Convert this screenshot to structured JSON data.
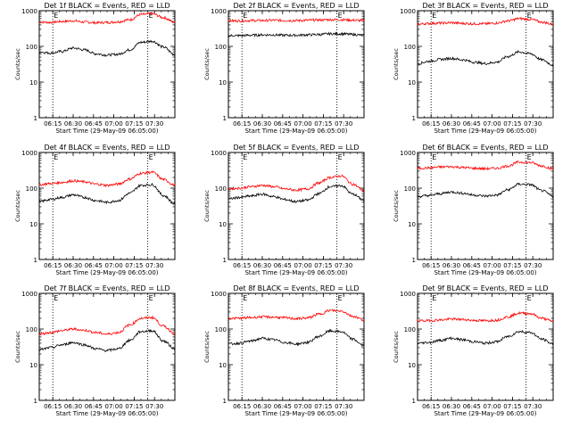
{
  "chart_data": [
    {
      "type": "line",
      "title": "Det 1f BLACK = Events, RED = LLD",
      "xlabel": "Start Time (29-May-09 06:05:00)",
      "ylabel": "Counts/sec",
      "yscale": "log",
      "ylim": [
        1,
        1000
      ],
      "xlim": [
        "06:05",
        "07:45"
      ],
      "x_ticks": [
        "06:15",
        "06:30",
        "06:45",
        "07:00",
        "07:15",
        "07:30"
      ],
      "y_ticks": [
        "1",
        "10",
        "100",
        "1000"
      ],
      "markers": [
        {
          "label": "E",
          "x": "06:15"
        },
        {
          "label": "E",
          "x": "07:25"
        }
      ],
      "series": [
        {
          "color": "#ff0000",
          "values": [
            480,
            470,
            500,
            520,
            480,
            460,
            470,
            490,
            560,
            780,
            820,
            640,
            470
          ]
        },
        {
          "color": "#000000",
          "values": [
            70,
            65,
            72,
            90,
            80,
            62,
            57,
            60,
            80,
            130,
            140,
            95,
            58
          ]
        }
      ]
    },
    {
      "type": "line",
      "title": "Det 2f BLACK = Events, RED = LLD",
      "xlabel": "Start Time (29-May-09 06:05:00)",
      "ylabel": "Counts/sec",
      "yscale": "log",
      "ylim": [
        1,
        1000
      ],
      "xlim": [
        "06:05",
        "07:45"
      ],
      "x_ticks": [
        "06:15",
        "06:30",
        "06:45",
        "07:00",
        "07:15",
        "07:30"
      ],
      "y_ticks": [
        "1",
        "10",
        "100",
        "1000"
      ],
      "markers": [
        {
          "label": "E",
          "x": "06:15"
        },
        {
          "label": "E",
          "x": "07:25"
        }
      ],
      "series": [
        {
          "color": "#ff0000",
          "values": [
            520,
            520,
            530,
            530,
            540,
            530,
            530,
            540,
            550,
            560,
            560,
            540,
            530
          ]
        },
        {
          "color": "#000000",
          "values": [
            200,
            200,
            205,
            210,
            210,
            205,
            205,
            210,
            215,
            225,
            225,
            215,
            205
          ]
        }
      ]
    },
    {
      "type": "line",
      "title": "Det 3f BLACK = Events, RED = LLD",
      "xlabel": "Start Time (29-May-09 06:05:00)",
      "ylabel": "Counts/sec",
      "yscale": "log",
      "ylim": [
        1,
        1000
      ],
      "xlim": [
        "06:05",
        "07:45"
      ],
      "x_ticks": [
        "06:15",
        "06:30",
        "06:45",
        "07:00",
        "07:15",
        "07:30"
      ],
      "y_ticks": [
        "1",
        "10",
        "100",
        "1000"
      ],
      "markers": [
        {
          "label": "E",
          "x": "06:15"
        },
        {
          "label": "E",
          "x": "07:25"
        }
      ],
      "series": [
        {
          "color": "#ff0000",
          "values": [
            420,
            440,
            450,
            460,
            440,
            430,
            430,
            450,
            520,
            600,
            570,
            480,
            420
          ]
        },
        {
          "color": "#000000",
          "values": [
            33,
            38,
            43,
            46,
            42,
            36,
            33,
            36,
            52,
            70,
            62,
            42,
            30
          ]
        }
      ]
    },
    {
      "type": "line",
      "title": "Det 4f BLACK = Events, RED = LLD",
      "xlabel": "Start Time (29-May-09 06:05:00)",
      "ylabel": "Counts/sec",
      "yscale": "log",
      "ylim": [
        1,
        1000
      ],
      "xlim": [
        "06:05",
        "07:45"
      ],
      "x_ticks": [
        "06:15",
        "06:30",
        "06:45",
        "07:00",
        "07:15",
        "07:30"
      ],
      "y_ticks": [
        "1",
        "10",
        "100",
        "1000"
      ],
      "markers": [
        {
          "label": "E",
          "x": "06:15"
        },
        {
          "label": "E",
          "x": "07:25"
        }
      ],
      "series": [
        {
          "color": "#ff0000",
          "values": [
            125,
            135,
            145,
            160,
            150,
            130,
            120,
            130,
            180,
            260,
            280,
            175,
            120
          ]
        },
        {
          "color": "#000000",
          "values": [
            42,
            48,
            55,
            65,
            55,
            45,
            40,
            45,
            72,
            120,
            125,
            62,
            36
          ]
        }
      ]
    },
    {
      "type": "line",
      "title": "Det 5f BLACK = Events, RED = LLD",
      "xlabel": "Start Time (29-May-09 06:05:00)",
      "ylabel": "Counts/sec",
      "yscale": "log",
      "ylim": [
        1,
        1000
      ],
      "xlim": [
        "06:05",
        "07:45"
      ],
      "x_ticks": [
        "06:15",
        "06:30",
        "06:45",
        "07:00",
        "07:15",
        "07:30"
      ],
      "y_ticks": [
        "1",
        "10",
        "100",
        "1000"
      ],
      "markers": [
        {
          "label": "E",
          "x": "06:15"
        },
        {
          "label": "E",
          "x": "07:25"
        }
      ],
      "series": [
        {
          "color": "#ff0000",
          "values": [
            95,
            100,
            110,
            120,
            110,
            95,
            88,
            95,
            140,
            200,
            220,
            130,
            85
          ]
        },
        {
          "color": "#000000",
          "values": [
            50,
            55,
            60,
            68,
            58,
            48,
            42,
            46,
            70,
            110,
            118,
            68,
            46
          ]
        }
      ]
    },
    {
      "type": "line",
      "title": "Det 6f BLACK = Events, RED = LLD",
      "xlabel": "Start Time (29-May-09 06:05:00)",
      "ylabel": "Counts/sec",
      "yscale": "log",
      "ylim": [
        1,
        1000
      ],
      "xlim": [
        "06:05",
        "07:45"
      ],
      "x_ticks": [
        "06:15",
        "06:30",
        "06:45",
        "07:00",
        "07:15",
        "07:30"
      ],
      "y_ticks": [
        "1",
        "10",
        "100",
        "1000"
      ],
      "markers": [
        {
          "label": "E",
          "x": "06:15"
        },
        {
          "label": "E",
          "x": "07:25"
        }
      ],
      "series": [
        {
          "color": "#ff0000",
          "values": [
            360,
            370,
            390,
            400,
            380,
            360,
            350,
            360,
            420,
            540,
            520,
            420,
            350
          ]
        },
        {
          "color": "#000000",
          "values": [
            58,
            62,
            70,
            78,
            72,
            64,
            60,
            64,
            90,
            130,
            125,
            85,
            60
          ]
        }
      ]
    },
    {
      "type": "line",
      "title": "Det 7f BLACK = Events, RED = LLD",
      "xlabel": "Start Time (29-May-09 06:05:00)",
      "ylabel": "Counts/sec",
      "yscale": "log",
      "ylim": [
        1,
        1000
      ],
      "xlim": [
        "06:05",
        "07:45"
      ],
      "x_ticks": [
        "06:15",
        "06:30",
        "06:45",
        "07:00",
        "07:15",
        "07:30"
      ],
      "y_ticks": [
        "1",
        "10",
        "100",
        "1000"
      ],
      "markers": [
        {
          "label": "E",
          "x": "06:15"
        },
        {
          "label": "E",
          "x": "07:25"
        }
      ],
      "series": [
        {
          "color": "#ff0000",
          "values": [
            72,
            80,
            90,
            100,
            92,
            80,
            72,
            80,
            130,
            200,
            210,
            120,
            75
          ]
        },
        {
          "color": "#000000",
          "values": [
            26,
            30,
            36,
            42,
            36,
            28,
            25,
            28,
            48,
            85,
            90,
            46,
            28
          ]
        }
      ]
    },
    {
      "type": "line",
      "title": "Det 8f BLACK = Events, RED = LLD",
      "xlabel": "Start Time (29-May-09 06:05:00)",
      "ylabel": "Counts/sec",
      "yscale": "log",
      "ylim": [
        1,
        1000
      ],
      "xlim": [
        "06:05",
        "07:45"
      ],
      "x_ticks": [
        "06:15",
        "06:30",
        "06:45",
        "07:00",
        "07:15",
        "07:30"
      ],
      "y_ticks": [
        "1",
        "10",
        "100",
        "1000"
      ],
      "markers": [
        {
          "label": "E",
          "x": "06:15"
        },
        {
          "label": "E",
          "x": "07:25"
        }
      ],
      "series": [
        {
          "color": "#ff0000",
          "values": [
            200,
            200,
            210,
            220,
            215,
            205,
            195,
            205,
            260,
            330,
            320,
            230,
            180
          ]
        },
        {
          "color": "#000000",
          "values": [
            38,
            40,
            46,
            55,
            50,
            42,
            38,
            42,
            62,
            88,
            84,
            52,
            34
          ]
        }
      ]
    },
    {
      "type": "line",
      "title": "Det 9f BLACK = Events, RED = LLD",
      "xlabel": "Start Time (29-May-09 06:05:00)",
      "ylabel": "Counts/sec",
      "yscale": "log",
      "ylim": [
        1,
        1000
      ],
      "xlim": [
        "06:05",
        "07:45"
      ],
      "x_ticks": [
        "06:15",
        "06:30",
        "06:45",
        "07:00",
        "07:15",
        "07:30"
      ],
      "y_ticks": [
        "1",
        "10",
        "100",
        "1000"
      ],
      "markers": [
        {
          "label": "E",
          "x": "06:15"
        },
        {
          "label": "E",
          "x": "07:25"
        }
      ],
      "series": [
        {
          "color": "#ff0000",
          "values": [
            170,
            172,
            180,
            190,
            185,
            175,
            170,
            178,
            220,
            280,
            270,
            200,
            165
          ]
        },
        {
          "color": "#000000",
          "values": [
            40,
            42,
            48,
            55,
            50,
            44,
            40,
            44,
            62,
            85,
            80,
            52,
            38
          ]
        }
      ]
    }
  ]
}
